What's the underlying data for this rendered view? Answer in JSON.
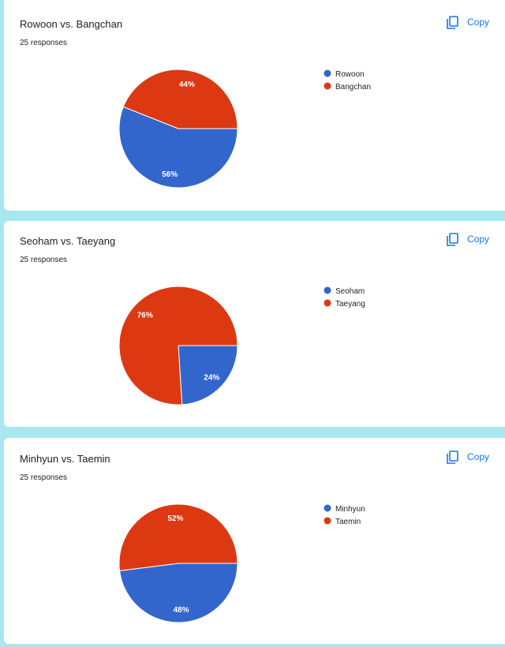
{
  "chart_data": [
    {
      "type": "pie",
      "title": "Rowoon vs. Bangchan",
      "subtitle": "25 responses",
      "copy_label": "Copy",
      "categories": [
        "Rowoon",
        "Bangchan"
      ],
      "values": [
        56,
        44
      ],
      "value_labels": [
        "56%",
        "44%"
      ],
      "colors": [
        "#3366cc",
        "#dc3912"
      ]
    },
    {
      "type": "pie",
      "title": "Seoham vs. Taeyang",
      "subtitle": "25 responses",
      "copy_label": "Copy",
      "categories": [
        "Seoham",
        "Taeyang"
      ],
      "values": [
        24,
        76
      ],
      "value_labels": [
        "24%",
        "76%"
      ],
      "colors": [
        "#3366cc",
        "#dc3912"
      ]
    },
    {
      "type": "pie",
      "title": "Minhyun vs. Taemin",
      "subtitle": "25 responses",
      "copy_label": "Copy",
      "categories": [
        "Minhyun",
        "Taemin"
      ],
      "values": [
        48,
        52
      ],
      "value_labels": [
        "48%",
        "52%"
      ],
      "colors": [
        "#3366cc",
        "#dc3912"
      ]
    }
  ]
}
